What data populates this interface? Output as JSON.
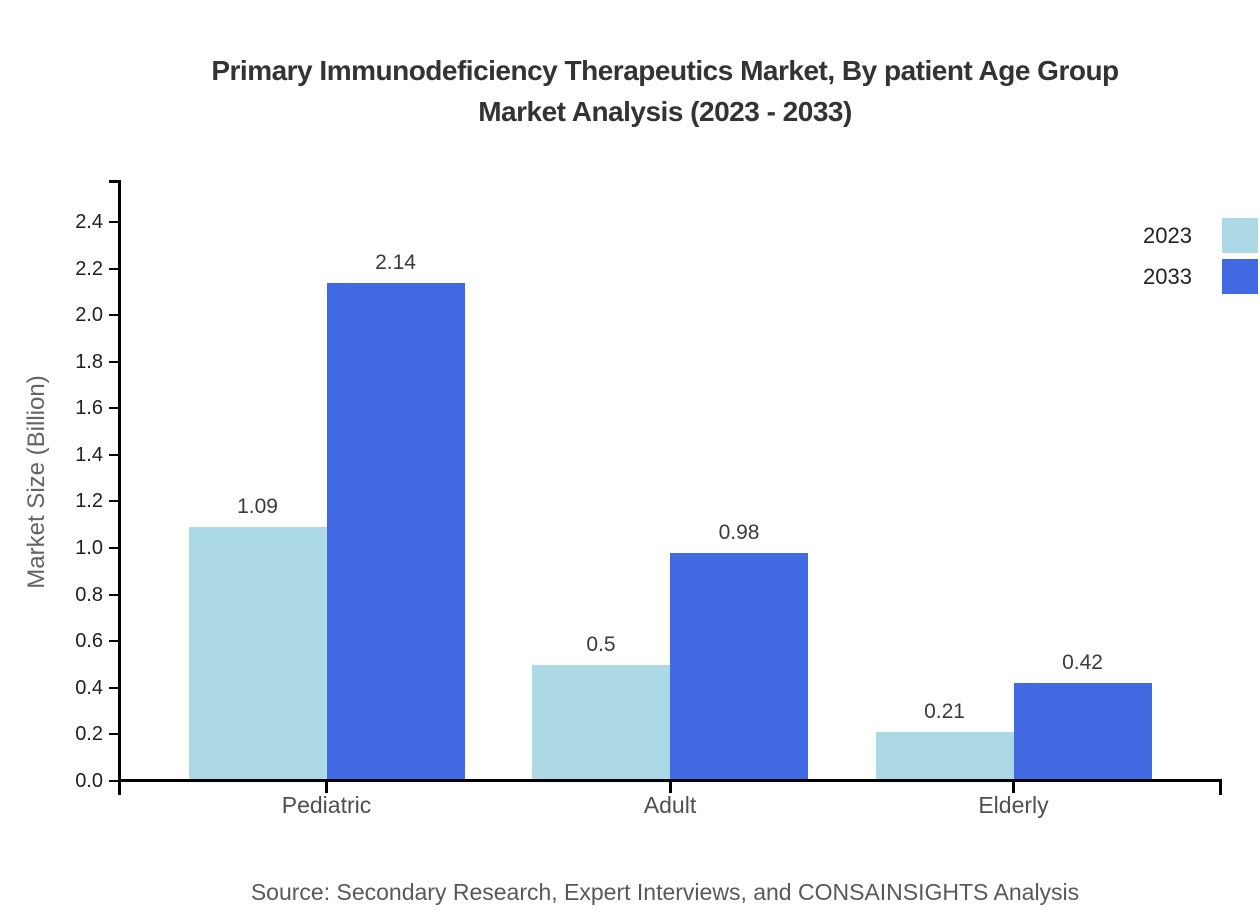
{
  "title": {
    "line1": "Primary Immunodeficiency Therapeutics Market, By patient Age Group",
    "line2": "Market Analysis (2023 - 2033)"
  },
  "source": "Source: Secondary Research, Expert Interviews, and CONSAINSIGHTS Analysis",
  "chart_data": {
    "type": "bar",
    "title": "Primary Immunodeficiency Therapeutics Market, By patient Age Group Market Analysis (2023 - 2033)",
    "categories": [
      "Pediatric",
      "Adult",
      "Elderly"
    ],
    "series": [
      {
        "name": "2023",
        "color": "#ADD8E6",
        "values": [
          1.09,
          0.5,
          0.21
        ]
      },
      {
        "name": "2033",
        "color": "#4169E1",
        "values": [
          2.14,
          0.98,
          0.42
        ]
      }
    ],
    "value_labels": [
      [
        "1.09",
        "0.5",
        "0.21"
      ],
      [
        "2.14",
        "0.98",
        "0.42"
      ]
    ],
    "xlabel": "",
    "ylabel": "Market Size (Billion)",
    "ylim": [
      0,
      2.58
    ],
    "yticks": [
      0.0,
      0.2,
      0.4,
      0.6,
      0.8,
      1.0,
      1.2,
      1.4,
      1.6,
      1.8,
      2.0,
      2.2,
      2.4
    ],
    "grid": false,
    "legend_position": "top-right",
    "axis_color": "#000000",
    "background_color": "#ffffff"
  }
}
